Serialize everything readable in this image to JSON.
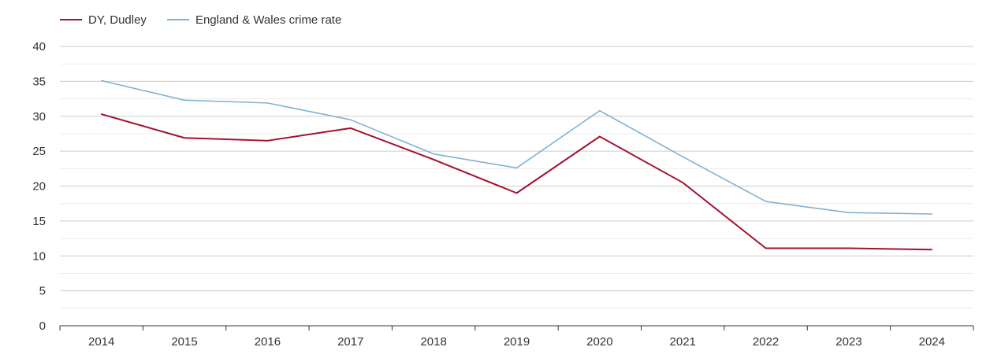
{
  "chart_data": {
    "type": "line",
    "title": "",
    "xlabel": "",
    "ylabel": "",
    "categories": [
      "2014",
      "2015",
      "2016",
      "2017",
      "2018",
      "2019",
      "2020",
      "2021",
      "2022",
      "2023",
      "2024"
    ],
    "ylim": [
      0,
      40
    ],
    "yticks": [
      "0",
      "5",
      "10",
      "15",
      "20",
      "25",
      "30",
      "35",
      "40"
    ],
    "grid": true,
    "legend_position": "top-left",
    "series": [
      {
        "name": "DY, Dudley",
        "color": "#a3112f",
        "values": [
          30.3,
          26.9,
          26.5,
          28.3,
          23.8,
          19.0,
          27.1,
          20.5,
          11.1,
          11.1,
          10.9
        ]
      },
      {
        "name": "England & Wales crime rate",
        "color": "#7fb2d3",
        "values": [
          35.1,
          32.3,
          31.9,
          29.5,
          24.6,
          22.6,
          30.8,
          24.2,
          17.8,
          16.2,
          16.0
        ]
      }
    ]
  }
}
